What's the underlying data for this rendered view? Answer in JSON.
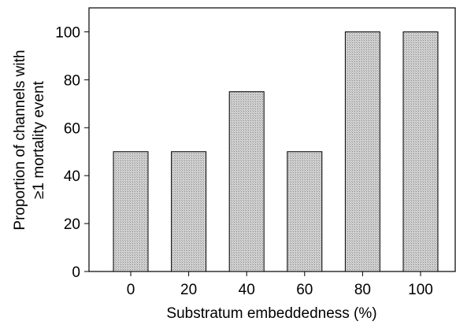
{
  "chart_data": {
    "type": "bar",
    "categories": [
      "0",
      "20",
      "40",
      "60",
      "80",
      "100"
    ],
    "values": [
      50,
      50,
      75,
      50,
      100,
      100
    ],
    "xlabel": "Substratum embeddedness (%)",
    "ylabel_line1": "Proportion of channels with",
    "ylabel_line2": "≥1 mortality event",
    "ylim": [
      0,
      110
    ],
    "yticks": [
      0,
      20,
      40,
      60,
      80,
      100
    ],
    "grid": false,
    "bar_fill": "#c8c8c8",
    "bar_stroke": "#000000"
  }
}
